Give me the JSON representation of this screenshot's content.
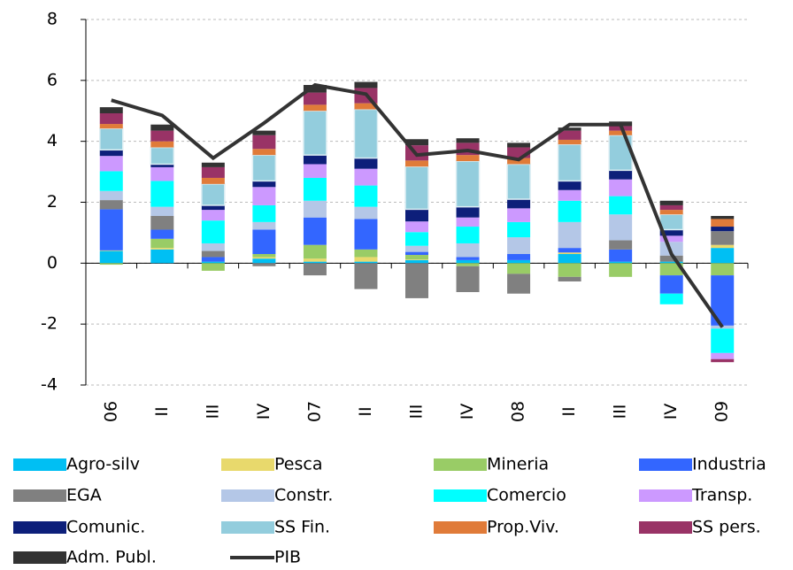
{
  "chart_data": {
    "type": "stacked-bar",
    "categories": [
      "06",
      "II",
      "III",
      "IV",
      "07",
      "II",
      "III",
      "IV",
      "08",
      "II",
      "III",
      "IV",
      "09"
    ],
    "ylim": [
      -4,
      8
    ],
    "yticks": [
      -4,
      -2,
      0,
      2,
      4,
      6,
      8
    ],
    "grid": true,
    "legend": "bottom",
    "series": [
      {
        "name": "Agro-silv",
        "color": "#00bff3",
        "values": [
          0.4,
          0.45,
          0.05,
          0.15,
          0.05,
          0.05,
          0.1,
          0.1,
          0.1,
          0.3,
          0.05,
          0.05,
          0.5
        ]
      },
      {
        "name": "Pesca",
        "color": "#e8d96c",
        "values": [
          0.02,
          0.05,
          0,
          0.05,
          0.1,
          0.15,
          0.02,
          0,
          0,
          0.05,
          0,
          0,
          0.1
        ]
      },
      {
        "name": "Mineria",
        "color": "#99cc66",
        "values": [
          -0.05,
          0.3,
          -0.25,
          0.1,
          0.45,
          0.25,
          0.15,
          -0.1,
          -0.35,
          -0.45,
          -0.45,
          -0.4,
          -0.4
        ]
      },
      {
        "name": "Industria",
        "color": "#3366ff",
        "values": [
          1.35,
          0.3,
          0.15,
          0.8,
          0.9,
          1.0,
          0.1,
          0.1,
          0.2,
          0.15,
          0.4,
          -0.6,
          -1.65
        ]
      },
      {
        "name": "EGA",
        "color": "#808080",
        "values": [
          0.3,
          0.45,
          0.2,
          -0.1,
          -0.4,
          -0.85,
          -1.15,
          -0.85,
          -0.65,
          -0.15,
          0.3,
          0.2,
          0.45
        ]
      },
      {
        "name": "Constr.",
        "color": "#b4c7e7",
        "values": [
          0.3,
          0.3,
          0.25,
          0.25,
          0.55,
          0.4,
          0.2,
          0.45,
          0.55,
          0.85,
          0.85,
          0.45,
          -0.1
        ]
      },
      {
        "name": "Comercio",
        "color": "#00ffff",
        "values": [
          0.65,
          0.85,
          0.75,
          0.55,
          0.75,
          0.7,
          0.45,
          0.55,
          0.5,
          0.7,
          0.6,
          -0.35,
          -0.8
        ]
      },
      {
        "name": "Transp.",
        "color": "#cc99ff",
        "values": [
          0.5,
          0.45,
          0.35,
          0.6,
          0.45,
          0.55,
          0.35,
          0.3,
          0.45,
          0.35,
          0.55,
          0.2,
          -0.2
        ]
      },
      {
        "name": "Comunic.",
        "color": "#0d1f7a",
        "values": [
          0.2,
          0.1,
          0.15,
          0.2,
          0.3,
          0.35,
          0.4,
          0.35,
          0.3,
          0.3,
          0.3,
          0.2,
          0.15
        ]
      },
      {
        "name": "SS Fin.",
        "color": "#93cddd",
        "values": [
          0.7,
          0.55,
          0.7,
          0.85,
          1.45,
          1.6,
          1.4,
          1.5,
          1.15,
          1.2,
          1.15,
          0.5,
          0
        ]
      },
      {
        "name": "Prop.Viv.",
        "color": "#e07b39",
        "values": [
          0.15,
          0.2,
          0.2,
          0.2,
          0.2,
          0.2,
          0.2,
          0.2,
          0.2,
          0.15,
          0.15,
          0.15,
          0.25
        ]
      },
      {
        "name": "SS pers.",
        "color": "#993366",
        "values": [
          0.35,
          0.35,
          0.35,
          0.45,
          0.4,
          0.5,
          0.5,
          0.4,
          0.35,
          0.3,
          0.15,
          0.15,
          -0.1
        ]
      },
      {
        "name": "Adm. Publ.",
        "color": "#333333",
        "values": [
          0.2,
          0.2,
          0.15,
          0.15,
          0.25,
          0.2,
          0.2,
          0.15,
          0.15,
          0.1,
          0.15,
          0.15,
          0.1
        ]
      },
      {
        "name": "PIB",
        "type": "line",
        "color": "#333333",
        "values": [
          5.35,
          4.85,
          3.45,
          4.6,
          5.85,
          5.55,
          3.55,
          3.7,
          3.4,
          4.55,
          4.55,
          0.3,
          -2.1
        ]
      }
    ]
  }
}
